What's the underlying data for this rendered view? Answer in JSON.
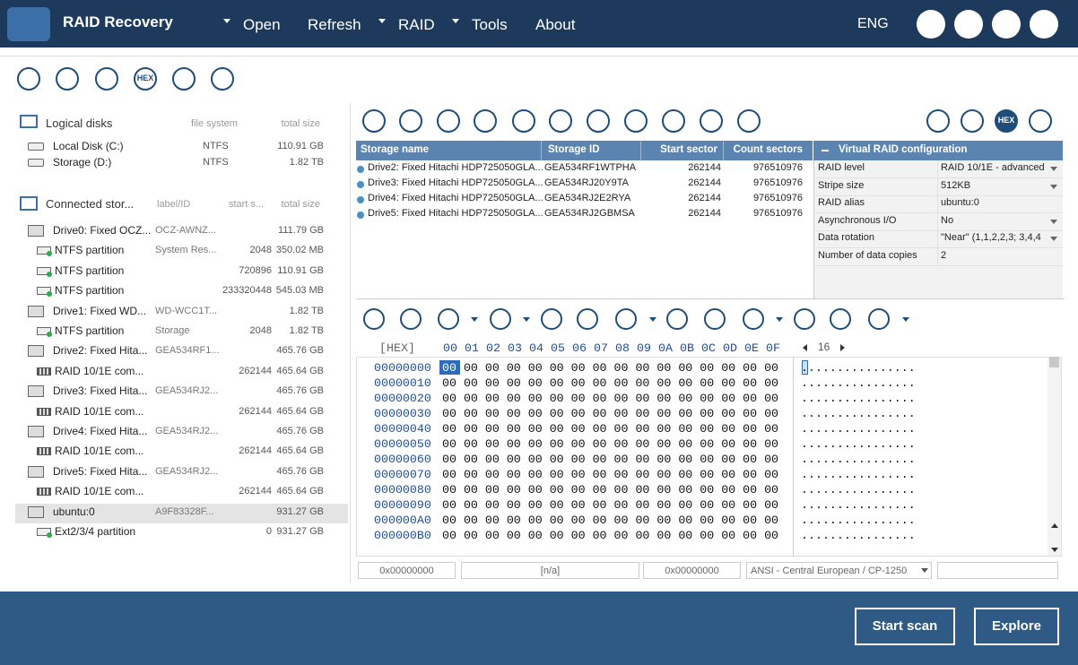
{
  "app": {
    "title": "RAID Recovery",
    "menu": [
      "Open",
      "Refresh",
      "RAID",
      "Tools",
      "About"
    ],
    "language": "ENG"
  },
  "toolbar": {
    "hex_label": "HEX"
  },
  "logical_disks": {
    "header": [
      "Logical disks",
      "file system",
      "total size"
    ],
    "rows": [
      [
        "Local Disk (C:)",
        "NTFS",
        "110.91 GB"
      ],
      [
        "Storage (D:)",
        "NTFS",
        "1.82 TB"
      ]
    ]
  },
  "connected_storages": {
    "header": [
      "Connected stor...",
      "label/ID",
      "start s...",
      "total size"
    ],
    "rows": [
      {
        "kind": "drive",
        "name": "Drive0: Fixed OCZ...",
        "label": "OCZ-AWNZ...",
        "size": "111.79 GB"
      },
      {
        "kind": "partition",
        "name": "NTFS partition",
        "label": "System Res...",
        "start": "2048",
        "size": "350.02 MB"
      },
      {
        "kind": "partition",
        "name": "NTFS partition",
        "start": "720896",
        "size": "110.91 GB"
      },
      {
        "kind": "partition",
        "name": "NTFS partition",
        "start": "233320448",
        "size": "545.03 MB"
      },
      {
        "kind": "drive",
        "name": "Drive1: Fixed WD...",
        "label": "WD-WCC1T...",
        "size": "1.82 TB"
      },
      {
        "kind": "partition",
        "name": "NTFS partition",
        "label": "Storage",
        "start": "2048",
        "size": "1.82 TB"
      },
      {
        "kind": "drive",
        "name": "Drive2: Fixed Hita...",
        "label": "GEA534RF1...",
        "size": "465.76 GB"
      },
      {
        "kind": "raid",
        "name": "RAID 10/1E com...",
        "start": "262144",
        "size": "465.64 GB"
      },
      {
        "kind": "drive",
        "name": "Drive3: Fixed Hita...",
        "label": "GEA534RJ2...",
        "size": "465.76 GB"
      },
      {
        "kind": "raid",
        "name": "RAID 10/1E com...",
        "start": "262144",
        "size": "465.64 GB"
      },
      {
        "kind": "drive",
        "name": "Drive4: Fixed Hita...",
        "label": "GEA534RJ2...",
        "size": "465.76 GB"
      },
      {
        "kind": "raid",
        "name": "RAID 10/1E com...",
        "start": "262144",
        "size": "465.64 GB"
      },
      {
        "kind": "drive",
        "name": "Drive5: Fixed Hita...",
        "label": "GEA534RJ2...",
        "size": "465.76 GB"
      },
      {
        "kind": "raid",
        "name": "RAID 10/1E com...",
        "start": "262144",
        "size": "465.64 GB"
      },
      {
        "kind": "volume",
        "name": "ubuntu:0",
        "label": "A9F83328F...",
        "size": "931.27 GB",
        "selected": true
      },
      {
        "kind": "partition",
        "name": "Ext2/3/4 partition",
        "start": "0",
        "size": "931.27 GB"
      }
    ]
  },
  "storage_table": {
    "header": [
      "Storage name",
      "Storage ID",
      "Start sector",
      "Count sectors"
    ],
    "rows": [
      [
        "Drive2: Fixed Hitachi HDP725050GLA...",
        "GEA534RF1WTPHA",
        "262144",
        "976510976"
      ],
      [
        "Drive3: Fixed Hitachi HDP725050GLA...",
        "GEA534RJ20Y9TA",
        "262144",
        "976510976"
      ],
      [
        "Drive4: Fixed Hitachi HDP725050GLA...",
        "GEA534RJ2E2RYA",
        "262144",
        "976510976"
      ],
      [
        "Drive5: Fixed Hitachi HDP725050GLA...",
        "GEA534RJ2GBMSA",
        "262144",
        "976510976"
      ]
    ]
  },
  "raid_config": {
    "title": "Virtual RAID configuration",
    "rows": [
      {
        "key": "RAID level",
        "value": "RAID 10/1E - advanced",
        "dropdown": true
      },
      {
        "key": "Stripe size",
        "value": "512KB",
        "dropdown": true
      },
      {
        "key": "RAID alias",
        "value": "ubuntu:0",
        "dropdown": false
      },
      {
        "key": "Asynchronous I/O",
        "value": "No",
        "dropdown": true
      },
      {
        "key": "Data rotation",
        "value": "\"Near\" (1,1,2,2,3; 3,4,4",
        "dropdown": true
      },
      {
        "key": "Number of data copies",
        "value": "2",
        "dropdown": false
      }
    ]
  },
  "view_toolbar": {
    "hex_label": "HEX"
  },
  "hex": {
    "mode": "[HEX]",
    "columns": [
      "00",
      "01",
      "02",
      "03",
      "04",
      "05",
      "06",
      "07",
      "08",
      "09",
      "0A",
      "0B",
      "0C",
      "0D",
      "0E",
      "0F"
    ],
    "width": "16",
    "offsets": [
      "00000000",
      "00000010",
      "00000020",
      "00000030",
      "00000040",
      "00000050",
      "00000060",
      "00000070",
      "00000080",
      "00000090",
      "000000A0",
      "000000B0"
    ],
    "rows": [
      "00 00 00 00 00 00 00 00 00 00 00 00 00 00 00 00",
      "00 00 00 00 00 00 00 00 00 00 00 00 00 00 00 00",
      "00 00 00 00 00 00 00 00 00 00 00 00 00 00 00 00",
      "00 00 00 00 00 00 00 00 00 00 00 00 00 00 00 00",
      "00 00 00 00 00 00 00 00 00 00 00 00 00 00 00 00",
      "00 00 00 00 00 00 00 00 00 00 00 00 00 00 00 00",
      "00 00 00 00 00 00 00 00 00 00 00 00 00 00 00 00",
      "00 00 00 00 00 00 00 00 00 00 00 00 00 00 00 00",
      "00 00 00 00 00 00 00 00 00 00 00 00 00 00 00 00",
      "00 00 00 00 00 00 00 00 00 00 00 00 00 00 00 00",
      "00 00 00 00 00 00 00 00 00 00 00 00 00 00 00 00",
      "00 00 00 00 00 00 00 00 00 00 00 00 00 00 00 00"
    ],
    "ascii": [
      "................",
      "................",
      "................",
      "................",
      "................",
      "................",
      "................",
      "................",
      "................",
      "................",
      "................",
      "................"
    ]
  },
  "status_bar": [
    "0x00000000",
    "[n/a]",
    "0x00000000",
    "ANSI - Central European / CP-1250"
  ],
  "actions": [
    "Start scan",
    "Explore"
  ]
}
